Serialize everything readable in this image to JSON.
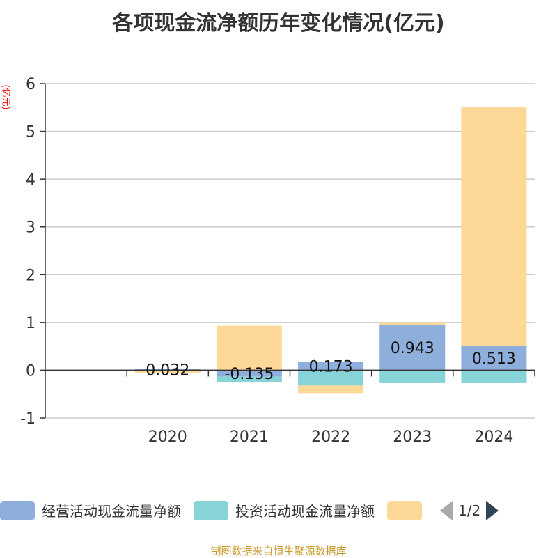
{
  "chart_data": {
    "type": "bar",
    "stacked": true,
    "title": "各项现金流净额历年变化情况(亿元)",
    "ylabel": "(亿元)",
    "categories": [
      "",
      "2020",
      "2021",
      "2022",
      "2023",
      "2024"
    ],
    "ylim": [
      -1,
      6
    ],
    "yticks": [
      -1,
      0,
      1,
      2,
      3,
      4,
      5,
      6
    ],
    "series": [
      {
        "name": "经营活动现金流量净额",
        "color": "#8eaedb",
        "values": [
          null,
          0.032,
          -0.135,
          0.173,
          0.943,
          0.513
        ],
        "labels": [
          "",
          "0.032",
          "-0.135",
          "0.173",
          "0.943",
          "0.513"
        ]
      },
      {
        "name": "投资活动现金流量净额",
        "color": "#86d4d8",
        "values": [
          null,
          -0.01,
          -0.12,
          -0.32,
          -0.27,
          -0.27
        ]
      },
      {
        "name": "",
        "color": "#fed897",
        "values": [
          null,
          -0.05,
          0.93,
          -0.16,
          0.06,
          4.99
        ]
      }
    ],
    "legend_position": "bottom"
  },
  "legend": {
    "page": "1/2"
  },
  "source": "制图数据来自恒生聚源数据库"
}
